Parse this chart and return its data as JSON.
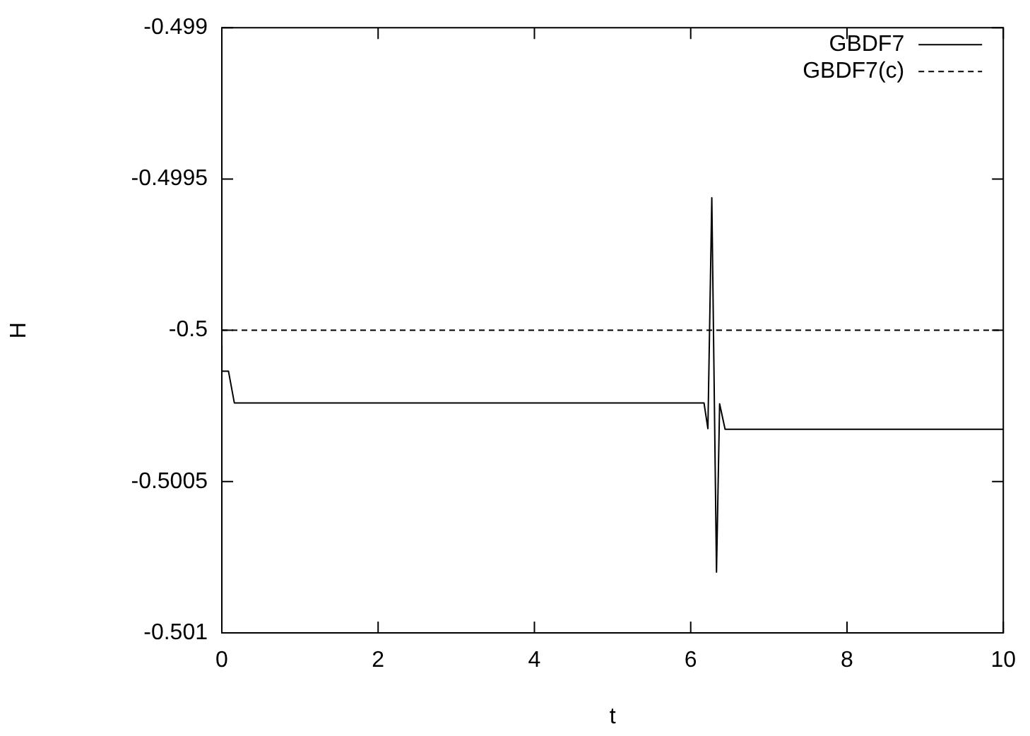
{
  "chart_data": {
    "type": "line",
    "xlabel": "t",
    "ylabel": "H",
    "xlim": [
      0,
      10
    ],
    "xticks": [
      0,
      2,
      4,
      6,
      8,
      10
    ],
    "ylim": [
      -0.501,
      -0.499
    ],
    "yticks": [
      -0.501,
      -0.5005,
      -0.5,
      -0.4995,
      -0.499
    ],
    "grid": false,
    "legend": "top right",
    "marker": "none",
    "series": [
      {
        "name": "GBDF7",
        "color": "#000000",
        "line_style": "solid",
        "x": [
          0,
          0.001,
          0.085,
          0.16,
          6.17,
          6.22,
          6.27,
          6.33,
          6.37,
          6.44,
          10
        ],
        "values": [
          -0.50005,
          -0.500135,
          -0.500135,
          -0.50024,
          -0.50024,
          -0.500325,
          -0.499562,
          -0.500799,
          -0.500243,
          -0.500327,
          -0.500327
        ]
      },
      {
        "name": "GBDF7(c)",
        "color": "#000000",
        "line_style": "dashed",
        "x": [
          0,
          10
        ],
        "values": [
          -0.5,
          -0.5
        ]
      }
    ]
  }
}
